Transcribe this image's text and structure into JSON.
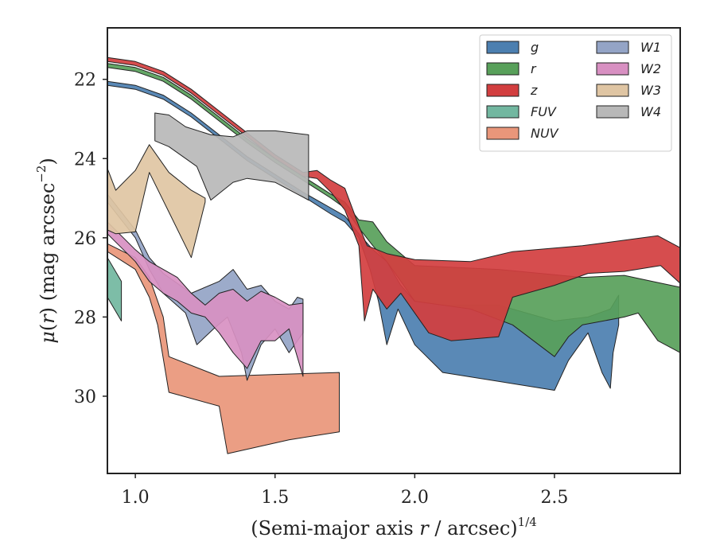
{
  "chart_data": {
    "type": "area",
    "xlabel": "(Semi-major axis r / arcsec)",
    "xlabel_parts": {
      "prefix": "(Semi-major axis ",
      "var": "r",
      "suffix": " / arcsec)",
      "sup": "1/4"
    },
    "ylabel": "μ(r) (mag arcsec−2)",
    "ylabel_parts": {
      "mu": "μ",
      "open": "(",
      "var": "r",
      "close": ")",
      "rest": " (mag arcsec",
      "sup": "−2",
      "end": ")"
    },
    "xlim": [
      0.9,
      2.95
    ],
    "ylim": [
      31.95,
      20.7
    ],
    "y_inverted": true,
    "xticks": [
      1.0,
      1.5,
      2.0,
      2.5
    ],
    "xtick_labels": [
      "1.0",
      "1.5",
      "2.0",
      "2.5"
    ],
    "yticks": [
      22,
      24,
      26,
      28,
      30
    ],
    "ytick_labels": [
      "22",
      "24",
      "26",
      "28",
      "30"
    ],
    "grid": false,
    "legend_position": "top-right",
    "legend_columns": 2,
    "series": [
      {
        "name": "g",
        "color": "#4c7fb0",
        "upper": [
          [
            0.9,
            22.05
          ],
          [
            1.0,
            22.15
          ],
          [
            1.1,
            22.4
          ],
          [
            1.2,
            22.85
          ],
          [
            1.3,
            23.4
          ],
          [
            1.4,
            23.95
          ],
          [
            1.5,
            24.4
          ],
          [
            1.6,
            24.85
          ],
          [
            1.7,
            25.25
          ],
          [
            1.75,
            25.45
          ],
          [
            1.8,
            25.9
          ],
          [
            1.85,
            26.3
          ],
          [
            1.9,
            26.6
          ],
          [
            1.95,
            27.2
          ],
          [
            2.0,
            27.6
          ],
          [
            2.1,
            27.7
          ],
          [
            2.3,
            27.7
          ],
          [
            2.5,
            28.1
          ],
          [
            2.62,
            28.0
          ],
          [
            2.7,
            27.8
          ],
          [
            2.73,
            27.45
          ]
        ],
        "lower": [
          [
            0.9,
            22.15
          ],
          [
            1.0,
            22.25
          ],
          [
            1.1,
            22.5
          ],
          [
            1.2,
            22.95
          ],
          [
            1.3,
            23.5
          ],
          [
            1.4,
            24.05
          ],
          [
            1.5,
            24.5
          ],
          [
            1.6,
            24.95
          ],
          [
            1.7,
            25.4
          ],
          [
            1.75,
            25.6
          ],
          [
            1.8,
            26.0
          ],
          [
            1.84,
            26.8
          ],
          [
            1.87,
            27.6
          ],
          [
            1.9,
            28.7
          ],
          [
            1.94,
            27.8
          ],
          [
            2.0,
            28.7
          ],
          [
            2.1,
            29.4
          ],
          [
            2.5,
            29.85
          ],
          [
            2.55,
            29.1
          ],
          [
            2.62,
            28.4
          ],
          [
            2.67,
            29.4
          ],
          [
            2.7,
            29.8
          ],
          [
            2.71,
            28.9
          ],
          [
            2.73,
            28.2
          ]
        ]
      },
      {
        "name": "r",
        "color": "#58a05a",
        "upper": [
          [
            0.9,
            21.6
          ],
          [
            1.0,
            21.7
          ],
          [
            1.1,
            21.95
          ],
          [
            1.2,
            22.4
          ],
          [
            1.3,
            22.95
          ],
          [
            1.4,
            23.5
          ],
          [
            1.5,
            24.0
          ],
          [
            1.6,
            24.45
          ],
          [
            1.7,
            24.9
          ],
          [
            1.75,
            25.1
          ],
          [
            1.8,
            25.55
          ],
          [
            1.85,
            25.6
          ],
          [
            1.9,
            26.1
          ],
          [
            2.0,
            26.7
          ],
          [
            2.3,
            26.8
          ],
          [
            2.6,
            27.0
          ],
          [
            2.75,
            26.95
          ],
          [
            2.85,
            27.1
          ],
          [
            2.95,
            27.25
          ]
        ],
        "lower": [
          [
            0.9,
            21.7
          ],
          [
            1.0,
            21.8
          ],
          [
            1.1,
            22.05
          ],
          [
            1.2,
            22.5
          ],
          [
            1.3,
            23.05
          ],
          [
            1.4,
            23.6
          ],
          [
            1.5,
            24.1
          ],
          [
            1.6,
            24.55
          ],
          [
            1.7,
            25.0
          ],
          [
            1.75,
            25.25
          ],
          [
            1.8,
            25.75
          ],
          [
            1.85,
            26.2
          ],
          [
            1.9,
            26.6
          ],
          [
            2.0,
            27.6
          ],
          [
            2.2,
            27.8
          ],
          [
            2.35,
            28.2
          ],
          [
            2.5,
            29.0
          ],
          [
            2.55,
            28.5
          ],
          [
            2.6,
            28.2
          ],
          [
            2.75,
            28.0
          ],
          [
            2.8,
            27.9
          ],
          [
            2.87,
            28.6
          ],
          [
            2.95,
            28.9
          ]
        ]
      },
      {
        "name": "z",
        "color": "#d23e3f",
        "upper": [
          [
            0.9,
            21.45
          ],
          [
            1.0,
            21.55
          ],
          [
            1.1,
            21.8
          ],
          [
            1.2,
            22.25
          ],
          [
            1.3,
            22.8
          ],
          [
            1.4,
            23.35
          ],
          [
            1.5,
            23.9
          ],
          [
            1.6,
            24.35
          ],
          [
            1.65,
            24.3
          ],
          [
            1.7,
            24.55
          ],
          [
            1.75,
            24.75
          ],
          [
            1.8,
            25.7
          ],
          [
            1.83,
            26.2
          ],
          [
            1.9,
            26.4
          ],
          [
            2.0,
            26.55
          ],
          [
            2.2,
            26.6
          ],
          [
            2.35,
            26.35
          ],
          [
            2.6,
            26.2
          ],
          [
            2.87,
            25.95
          ],
          [
            2.95,
            26.25
          ]
        ],
        "lower": [
          [
            0.9,
            21.55
          ],
          [
            1.0,
            21.65
          ],
          [
            1.1,
            21.9
          ],
          [
            1.2,
            22.35
          ],
          [
            1.3,
            22.9
          ],
          [
            1.4,
            23.45
          ],
          [
            1.5,
            24.0
          ],
          [
            1.6,
            24.45
          ],
          [
            1.65,
            24.5
          ],
          [
            1.7,
            24.85
          ],
          [
            1.75,
            25.3
          ],
          [
            1.8,
            26.2
          ],
          [
            1.82,
            28.1
          ],
          [
            1.85,
            27.3
          ],
          [
            1.9,
            27.8
          ],
          [
            1.95,
            27.4
          ],
          [
            2.05,
            28.4
          ],
          [
            2.13,
            28.6
          ],
          [
            2.3,
            28.5
          ],
          [
            2.35,
            27.5
          ],
          [
            2.5,
            27.2
          ],
          [
            2.62,
            26.9
          ],
          [
            2.75,
            26.85
          ],
          [
            2.88,
            26.7
          ],
          [
            2.95,
            27.15
          ]
        ]
      },
      {
        "name": "FUV",
        "color": "#72b7a0",
        "upper": [
          [
            0.9,
            26.5
          ],
          [
            0.95,
            27.1
          ]
        ],
        "lower": [
          [
            0.9,
            27.5
          ],
          [
            0.95,
            28.1
          ]
        ]
      },
      {
        "name": "NUV",
        "color": "#e9967a",
        "upper": [
          [
            0.9,
            26.15
          ],
          [
            1.0,
            26.5
          ],
          [
            1.05,
            27.0
          ],
          [
            1.1,
            28.0
          ],
          [
            1.12,
            29.0
          ],
          [
            1.3,
            29.5
          ],
          [
            1.5,
            29.45
          ],
          [
            1.73,
            29.4
          ]
        ],
        "lower": [
          [
            0.9,
            26.35
          ],
          [
            1.0,
            26.8
          ],
          [
            1.05,
            27.5
          ],
          [
            1.08,
            28.2
          ],
          [
            1.12,
            29.9
          ],
          [
            1.3,
            30.25
          ],
          [
            1.33,
            31.45
          ],
          [
            1.55,
            31.1
          ],
          [
            1.73,
            30.9
          ]
        ]
      },
      {
        "name": "W1",
        "color": "#94a4c6",
        "upper": [
          [
            0.9,
            24.9
          ],
          [
            1.0,
            25.8
          ],
          [
            1.05,
            26.5
          ],
          [
            1.1,
            26.9
          ],
          [
            1.2,
            27.4
          ],
          [
            1.3,
            27.1
          ],
          [
            1.35,
            26.8
          ],
          [
            1.4,
            27.3
          ],
          [
            1.45,
            27.2
          ],
          [
            1.5,
            27.6
          ],
          [
            1.55,
            27.8
          ],
          [
            1.58,
            27.5
          ],
          [
            1.6,
            27.55
          ]
        ],
        "lower": [
          [
            0.9,
            25.1
          ],
          [
            1.0,
            26.0
          ],
          [
            1.05,
            26.8
          ],
          [
            1.1,
            27.4
          ],
          [
            1.18,
            27.9
          ],
          [
            1.22,
            28.7
          ],
          [
            1.28,
            28.3
          ],
          [
            1.33,
            28.0
          ],
          [
            1.38,
            28.9
          ],
          [
            1.4,
            29.6
          ],
          [
            1.45,
            28.7
          ],
          [
            1.5,
            28.3
          ],
          [
            1.55,
            28.9
          ],
          [
            1.6,
            28.4
          ]
        ]
      },
      {
        "name": "W2",
        "color": "#d890c2",
        "upper": [
          [
            0.9,
            25.6
          ],
          [
            1.0,
            26.3
          ],
          [
            1.05,
            26.6
          ],
          [
            1.1,
            26.8
          ],
          [
            1.15,
            27.0
          ],
          [
            1.2,
            27.4
          ],
          [
            1.25,
            27.7
          ],
          [
            1.3,
            27.4
          ],
          [
            1.35,
            27.3
          ],
          [
            1.4,
            27.6
          ],
          [
            1.45,
            27.35
          ],
          [
            1.5,
            27.5
          ],
          [
            1.55,
            27.7
          ],
          [
            1.6,
            27.65
          ]
        ],
        "lower": [
          [
            0.9,
            25.9
          ],
          [
            1.0,
            26.6
          ],
          [
            1.05,
            27.1
          ],
          [
            1.1,
            27.4
          ],
          [
            1.15,
            27.6
          ],
          [
            1.2,
            27.9
          ],
          [
            1.25,
            28.0
          ],
          [
            1.3,
            28.4
          ],
          [
            1.35,
            28.9
          ],
          [
            1.4,
            29.3
          ],
          [
            1.45,
            28.6
          ],
          [
            1.5,
            28.6
          ],
          [
            1.55,
            28.3
          ],
          [
            1.6,
            29.5
          ]
        ]
      },
      {
        "name": "W3",
        "color": "#dfc5a3",
        "upper": [
          [
            0.9,
            24.25
          ],
          [
            0.93,
            24.8
          ],
          [
            1.0,
            24.3
          ],
          [
            1.05,
            23.65
          ],
          [
            1.12,
            24.35
          ],
          [
            1.2,
            24.8
          ],
          [
            1.25,
            25.0
          ]
        ],
        "lower": [
          [
            0.9,
            25.8
          ],
          [
            0.93,
            25.9
          ],
          [
            1.0,
            25.85
          ],
          [
            1.05,
            24.35
          ],
          [
            1.12,
            25.35
          ],
          [
            1.2,
            26.5
          ],
          [
            1.25,
            25.1
          ]
        ]
      },
      {
        "name": "W4",
        "color": "#b8b8b8",
        "upper": [
          [
            1.07,
            22.85
          ],
          [
            1.12,
            22.9
          ],
          [
            1.18,
            23.2
          ],
          [
            1.27,
            23.4
          ],
          [
            1.35,
            23.45
          ],
          [
            1.4,
            23.3
          ],
          [
            1.5,
            23.3
          ],
          [
            1.62,
            23.4
          ]
        ],
        "lower": [
          [
            1.07,
            23.55
          ],
          [
            1.12,
            23.7
          ],
          [
            1.22,
            24.2
          ],
          [
            1.27,
            25.05
          ],
          [
            1.35,
            24.6
          ],
          [
            1.4,
            24.5
          ],
          [
            1.5,
            24.6
          ],
          [
            1.62,
            25.05
          ]
        ]
      }
    ]
  }
}
